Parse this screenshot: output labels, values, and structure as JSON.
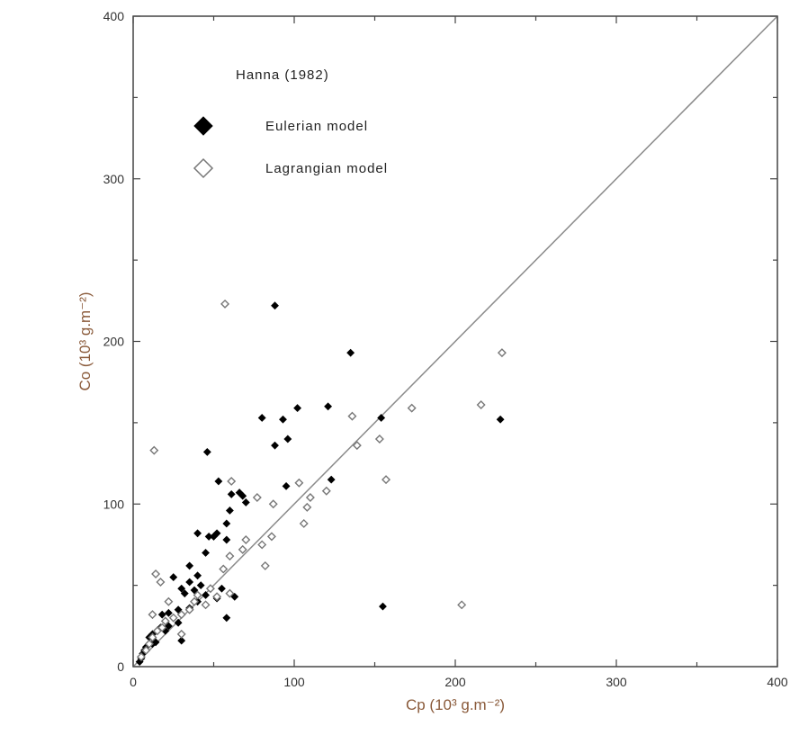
{
  "chart_data": {
    "type": "scatter",
    "title": "",
    "xlabel": "Cp (10³ g.m⁻²)",
    "ylabel": "Co (10³ g.m⁻²)",
    "xlim": [
      0,
      400
    ],
    "ylim": [
      0,
      400
    ],
    "x_ticks": [
      "0",
      "100",
      "200",
      "300",
      "400"
    ],
    "y_ticks": [
      "0",
      "100",
      "200",
      "300",
      "400"
    ],
    "grid": false,
    "reference_line": "1:1",
    "legend": {
      "title": "Hanna (1982)",
      "placement": "top-left"
    },
    "series": [
      {
        "name": "Eulerian model",
        "marker": "filled-diamond",
        "color": "#000000",
        "points": [
          [
            88,
            222
          ],
          [
            135,
            193
          ],
          [
            121,
            160
          ],
          [
            102,
            159
          ],
          [
            80,
            153
          ],
          [
            93,
            152
          ],
          [
            154,
            153
          ],
          [
            228,
            152
          ],
          [
            96,
            140
          ],
          [
            88,
            136
          ],
          [
            46,
            132
          ],
          [
            123,
            115
          ],
          [
            53,
            114
          ],
          [
            95,
            111
          ],
          [
            66,
            107
          ],
          [
            61,
            106
          ],
          [
            68,
            105
          ],
          [
            70,
            101
          ],
          [
            60,
            96
          ],
          [
            58,
            88
          ],
          [
            52,
            82
          ],
          [
            50,
            80
          ],
          [
            47,
            80
          ],
          [
            58,
            78
          ],
          [
            40,
            82
          ],
          [
            45,
            70
          ],
          [
            35,
            62
          ],
          [
            40,
            56
          ],
          [
            35,
            52
          ],
          [
            25,
            55
          ],
          [
            42,
            50
          ],
          [
            30,
            48
          ],
          [
            38,
            47
          ],
          [
            32,
            45
          ],
          [
            45,
            44
          ],
          [
            55,
            48
          ],
          [
            63,
            43
          ],
          [
            52,
            42
          ],
          [
            40,
            40
          ],
          [
            35,
            36
          ],
          [
            28,
            35
          ],
          [
            22,
            33
          ],
          [
            18,
            32
          ],
          [
            25,
            30
          ],
          [
            20,
            28
          ],
          [
            28,
            27
          ],
          [
            22,
            25
          ],
          [
            17,
            24
          ],
          [
            15,
            22
          ],
          [
            12,
            20
          ],
          [
            10,
            18
          ],
          [
            8,
            12
          ],
          [
            6,
            8
          ],
          [
            5,
            5
          ],
          [
            7,
            10
          ],
          [
            4,
            3
          ],
          [
            14,
            15
          ],
          [
            20,
            22
          ],
          [
            58,
            30
          ],
          [
            155,
            37
          ],
          [
            30,
            16
          ],
          [
            12,
            14
          ]
        ]
      },
      {
        "name": "Lagrangian model",
        "marker": "open-diamond",
        "color": "#777777",
        "points": [
          [
            57,
            223
          ],
          [
            229,
            193
          ],
          [
            216,
            161
          ],
          [
            173,
            159
          ],
          [
            136,
            154
          ],
          [
            153,
            140
          ],
          [
            139,
            136
          ],
          [
            157,
            115
          ],
          [
            61,
            114
          ],
          [
            103,
            113
          ],
          [
            120,
            108
          ],
          [
            110,
            104
          ],
          [
            108,
            98
          ],
          [
            77,
            104
          ],
          [
            106,
            88
          ],
          [
            87,
            100
          ],
          [
            70,
            78
          ],
          [
            86,
            80
          ],
          [
            80,
            75
          ],
          [
            68,
            72
          ],
          [
            60,
            68
          ],
          [
            56,
            60
          ],
          [
            82,
            62
          ],
          [
            60,
            45
          ],
          [
            52,
            43
          ],
          [
            48,
            48
          ],
          [
            40,
            44
          ],
          [
            38,
            40
          ],
          [
            45,
            38
          ],
          [
            35,
            35
          ],
          [
            30,
            32
          ],
          [
            25,
            30
          ],
          [
            20,
            28
          ],
          [
            18,
            24
          ],
          [
            15,
            22
          ],
          [
            12,
            18
          ],
          [
            10,
            14
          ],
          [
            14,
            57
          ],
          [
            17,
            52
          ],
          [
            13,
            133
          ],
          [
            12,
            32
          ],
          [
            204,
            38
          ],
          [
            30,
            20
          ],
          [
            8,
            10
          ],
          [
            5,
            6
          ],
          [
            22,
            40
          ]
        ]
      }
    ]
  }
}
